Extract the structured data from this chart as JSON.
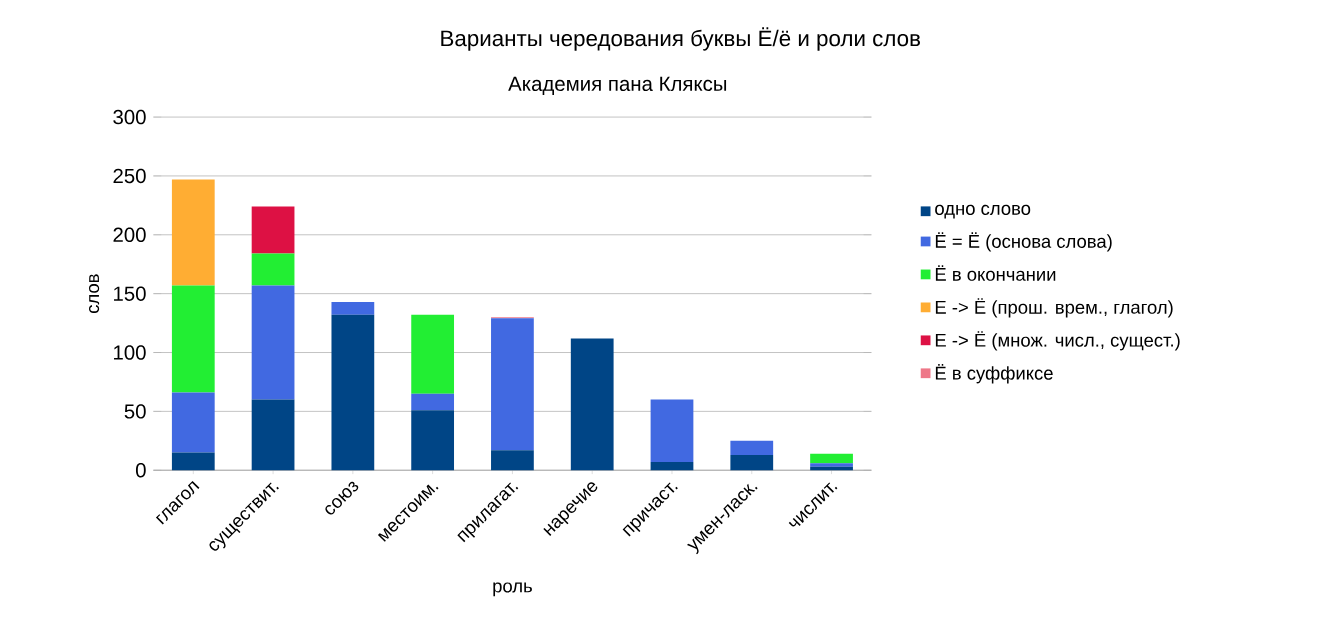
{
  "chart_data": {
    "type": "bar",
    "stacked": true,
    "title": "Варианты чередования буквы Ё/ё и роли слов",
    "subtitle": "Академия пана Кляксы",
    "xlabel": "роль",
    "ylabel": "слов",
    "categories": [
      "глагол",
      "существит.",
      "союз",
      "местоим.",
      "прилагат.",
      "наречие",
      "причаст.",
      "умен-ласк.",
      "числит."
    ],
    "series": [
      {
        "name": "одно слово",
        "color": "#004586",
        "values": [
          15,
          60,
          132,
          51,
          17,
          112,
          7,
          13,
          3
        ]
      },
      {
        "name": "Ё = Ё (основа слова)",
        "color": "#4169e1",
        "values": [
          51,
          97,
          11,
          14,
          112,
          0,
          53,
          12,
          3
        ]
      },
      {
        "name": "Ё в окончании",
        "color": "#22ee33",
        "values": [
          91,
          27,
          0,
          67,
          0,
          0,
          0,
          0,
          8
        ]
      },
      {
        "name": "Е -> Ё (прош. врем., глагол)",
        "color": "#ffad33",
        "values": [
          90,
          0,
          0,
          0,
          0,
          0,
          0,
          0,
          0
        ]
      },
      {
        "name": "Е -> Ё (множ. числ., сущест.)",
        "color": "#dd1144",
        "values": [
          0,
          40,
          0,
          0,
          0,
          0,
          0,
          0,
          0
        ]
      },
      {
        "name": "Ё в суффиксе",
        "color": "#ee7788",
        "values": [
          0,
          0,
          0,
          0,
          1,
          0,
          0,
          0,
          0
        ]
      }
    ],
    "ylim": [
      0,
      300
    ],
    "yticks": [
      0,
      50,
      100,
      150,
      200,
      250,
      300
    ],
    "grid": "y",
    "legend": "right"
  }
}
